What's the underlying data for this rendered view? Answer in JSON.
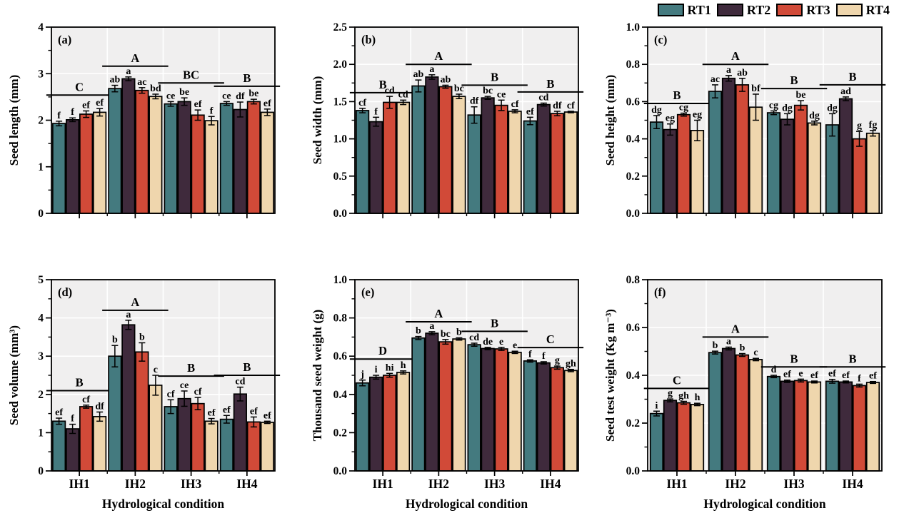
{
  "figure_title": "",
  "legend": {
    "items": [
      {
        "label": "RT1",
        "color": "#447A7F"
      },
      {
        "label": "RT2",
        "color": "#3F2A3C"
      },
      {
        "label": "RT3",
        "color": "#D14A38"
      },
      {
        "label": "RT4",
        "color": "#EFD6AD"
      }
    ]
  },
  "styles": {
    "plot_bg": "#F0EFEF",
    "grid_color": "#FFFFFF",
    "axis_color": "#000000"
  },
  "categories": [
    "IH1",
    "IH2",
    "IH3",
    "IH4"
  ],
  "series_names": [
    "RT1",
    "RT2",
    "RT3",
    "RT4"
  ],
  "xlabel": "Hydrological condition",
  "chart_data": [
    {
      "type": "bar",
      "tag": "(a)",
      "ylabel": "Seed length (mm)",
      "ylim": [
        0,
        4
      ],
      "yticks": [
        0,
        1,
        2,
        3,
        4
      ],
      "ytick_labels": [
        "0",
        "1",
        "2",
        "3",
        "4"
      ],
      "categories": [
        "IH1",
        "IH2",
        "IH3",
        "IH4"
      ],
      "show_x_labels": false,
      "xlabel": "",
      "series": [
        {
          "name": "RT1",
          "color": "#447A7F",
          "values": [
            1.93,
            2.68,
            2.35,
            2.36
          ],
          "errors": [
            0.05,
            0.07,
            0.05,
            0.04
          ],
          "letters": [
            "f",
            "ab",
            "ce",
            "ce"
          ]
        },
        {
          "name": "RT2",
          "color": "#3F2A3C",
          "values": [
            2.01,
            2.89,
            2.4,
            2.23
          ],
          "errors": [
            0.04,
            0.04,
            0.08,
            0.16
          ],
          "letters": [
            "f",
            "a",
            "be",
            "df"
          ]
        },
        {
          "name": "RT3",
          "color": "#D14A38",
          "values": [
            2.13,
            2.64,
            2.11,
            2.4
          ],
          "errors": [
            0.07,
            0.06,
            0.11,
            0.05
          ],
          "letters": [
            "ef",
            "ac",
            "ef",
            "be"
          ]
        },
        {
          "name": "RT4",
          "color": "#EFD6AD",
          "values": [
            2.17,
            2.51,
            1.99,
            2.17
          ],
          "errors": [
            0.08,
            0.05,
            0.09,
            0.07
          ],
          "letters": [
            "ef",
            "bd",
            "f",
            "ef"
          ]
        }
      ],
      "group_sig": [
        {
          "label": "C",
          "y": 2.54
        },
        {
          "label": "A",
          "y": 3.16
        },
        {
          "label": "BC",
          "y": 2.8
        },
        {
          "label": "B",
          "y": 2.73
        }
      ]
    },
    {
      "type": "bar",
      "tag": "(b)",
      "ylabel": "Seed width (mm)",
      "ylim": [
        0,
        2.5
      ],
      "yticks": [
        0,
        0.5,
        1.0,
        1.5,
        2.0,
        2.5
      ],
      "ytick_labels": [
        "0.0",
        "0.5",
        "1.0",
        "1.5",
        "2.0",
        "2.5"
      ],
      "categories": [
        "IH1",
        "IH2",
        "IH3",
        "IH4"
      ],
      "show_x_labels": false,
      "xlabel": "",
      "series": [
        {
          "name": "RT1",
          "color": "#447A7F",
          "values": [
            1.38,
            1.71,
            1.32,
            1.24
          ],
          "errors": [
            0.03,
            0.08,
            0.11,
            0.05
          ],
          "letters": [
            "cf",
            "ab",
            "df",
            "ef"
          ]
        },
        {
          "name": "RT2",
          "color": "#3F2A3C",
          "values": [
            1.23,
            1.83,
            1.55,
            1.46
          ],
          "errors": [
            0.06,
            0.03,
            0.02,
            0.02
          ],
          "letters": [
            "f",
            "a",
            "bc",
            "cd"
          ]
        },
        {
          "name": "RT3",
          "color": "#D14A38",
          "values": [
            1.49,
            1.7,
            1.45,
            1.34
          ],
          "errors": [
            0.08,
            0.02,
            0.07,
            0.03
          ],
          "letters": [
            "cd",
            "ab",
            "ce",
            "df"
          ]
        },
        {
          "name": "RT4",
          "color": "#EFD6AD",
          "values": [
            1.49,
            1.57,
            1.37,
            1.36
          ],
          "errors": [
            0.03,
            0.03,
            0.02,
            0.01
          ],
          "letters": [
            "cd",
            "bc",
            "cf",
            "cf"
          ]
        }
      ],
      "group_sig": [
        {
          "label": "B",
          "y": 1.62
        },
        {
          "label": "A",
          "y": 2.0
        },
        {
          "label": "B",
          "y": 1.72
        },
        {
          "label": "B",
          "y": 1.63
        }
      ]
    },
    {
      "type": "bar",
      "tag": "(c)",
      "ylabel": "Seed height (mm)",
      "ylim": [
        0,
        1.0
      ],
      "yticks": [
        0,
        0.2,
        0.4,
        0.6,
        0.8,
        1.0
      ],
      "ytick_labels": [
        "0.0",
        "0.2",
        "0.4",
        "0.6",
        "0.8",
        "1.0"
      ],
      "categories": [
        "IH1",
        "IH2",
        "IH3",
        "IH4"
      ],
      "show_x_labels": false,
      "xlabel": "",
      "series": [
        {
          "name": "RT1",
          "color": "#447A7F",
          "values": [
            0.49,
            0.655,
            0.54,
            0.475
          ],
          "errors": [
            0.035,
            0.035,
            0.01,
            0.06
          ],
          "letters": [
            "dg",
            "ac",
            "cg",
            "dg"
          ]
        },
        {
          "name": "RT2",
          "color": "#3F2A3C",
          "values": [
            0.45,
            0.725,
            0.505,
            0.615
          ],
          "errors": [
            0.03,
            0.015,
            0.03,
            0.01
          ],
          "letters": [
            "eg",
            "a",
            "dg",
            "ad"
          ]
        },
        {
          "name": "RT3",
          "color": "#D14A38",
          "values": [
            0.53,
            0.69,
            0.58,
            0.4
          ],
          "errors": [
            0.008,
            0.035,
            0.025,
            0.04
          ],
          "letters": [
            "cg",
            "ab",
            "be",
            "g"
          ]
        },
        {
          "name": "RT4",
          "color": "#EFD6AD",
          "values": [
            0.445,
            0.57,
            0.485,
            0.43
          ],
          "errors": [
            0.055,
            0.07,
            0.01,
            0.015
          ],
          "letters": [
            "eg",
            "bf",
            "dg",
            "fg"
          ]
        }
      ],
      "group_sig": [
        {
          "label": "B",
          "y": 0.59
        },
        {
          "label": "A",
          "y": 0.8
        },
        {
          "label": "B",
          "y": 0.67
        },
        {
          "label": "B",
          "y": 0.69
        }
      ]
    },
    {
      "type": "bar",
      "tag": "(d)",
      "ylabel": "Seed volume (mm³)",
      "ylim": [
        0,
        5
      ],
      "yticks": [
        0,
        1,
        2,
        3,
        4,
        5
      ],
      "ytick_labels": [
        "0",
        "1",
        "2",
        "3",
        "4",
        "5"
      ],
      "categories": [
        "IH1",
        "IH2",
        "IH3",
        "IH4"
      ],
      "show_x_labels": true,
      "xlabel": "Hydrological condition",
      "series": [
        {
          "name": "RT1",
          "color": "#447A7F",
          "values": [
            1.3,
            3.0,
            1.68,
            1.35
          ],
          "errors": [
            0.08,
            0.28,
            0.18,
            0.1
          ],
          "letters": [
            "ef",
            "b",
            "cf",
            "ef"
          ]
        },
        {
          "name": "RT2",
          "color": "#3F2A3C",
          "values": [
            1.1,
            3.82,
            1.89,
            2.01
          ],
          "errors": [
            0.12,
            0.12,
            0.2,
            0.18
          ],
          "letters": [
            "f",
            "a",
            "ce",
            "cd"
          ]
        },
        {
          "name": "RT3",
          "color": "#D14A38",
          "values": [
            1.68,
            3.11,
            1.76,
            1.28
          ],
          "errors": [
            0.04,
            0.24,
            0.16,
            0.13
          ],
          "letters": [
            "cf",
            "b",
            "cf",
            "ef"
          ]
        },
        {
          "name": "RT4",
          "color": "#EFD6AD",
          "values": [
            1.42,
            2.24,
            1.3,
            1.27
          ],
          "errors": [
            0.12,
            0.26,
            0.07,
            0.03
          ],
          "letters": [
            "df",
            "c",
            "ef",
            "ef"
          ]
        }
      ],
      "group_sig": [
        {
          "label": "B",
          "y": 2.1
        },
        {
          "label": "A",
          "y": 4.2
        },
        {
          "label": "B",
          "y": 2.48
        },
        {
          "label": "B",
          "y": 2.5
        }
      ]
    },
    {
      "type": "bar",
      "tag": "(e)",
      "ylabel": "Thousand seed weight (g)",
      "ylim": [
        0,
        1.0
      ],
      "yticks": [
        0,
        0.2,
        0.4,
        0.6,
        0.8,
        1.0
      ],
      "ytick_labels": [
        "0.0",
        "0.2",
        "0.4",
        "0.6",
        "0.8",
        "1.0"
      ],
      "categories": [
        "IH1",
        "IH2",
        "IH3",
        "IH4"
      ],
      "show_x_labels": true,
      "xlabel": "Hydrological condition",
      "series": [
        {
          "name": "RT1",
          "color": "#447A7F",
          "values": [
            0.46,
            0.695,
            0.66,
            0.575
          ],
          "errors": [
            0.015,
            0.008,
            0.008,
            0.006
          ],
          "letters": [
            "j",
            "b",
            "cd",
            "f"
          ]
        },
        {
          "name": "RT2",
          "color": "#3F2A3C",
          "values": [
            0.49,
            0.72,
            0.64,
            0.565
          ],
          "errors": [
            0.01,
            0.008,
            0.006,
            0.006
          ],
          "letters": [
            "i",
            "a",
            "de",
            "f"
          ]
        },
        {
          "name": "RT3",
          "color": "#D14A38",
          "values": [
            0.5,
            0.675,
            0.638,
            0.54
          ],
          "errors": [
            0.01,
            0.012,
            0.008,
            0.008
          ],
          "letters": [
            "hi",
            "bc",
            "e",
            "g"
          ]
        },
        {
          "name": "RT4",
          "color": "#EFD6AD",
          "values": [
            0.515,
            0.69,
            0.62,
            0.525
          ],
          "errors": [
            0.008,
            0.006,
            0.006,
            0.006
          ],
          "letters": [
            "h",
            "b",
            "e",
            "gh"
          ]
        }
      ],
      "group_sig": [
        {
          "label": "D",
          "y": 0.585
        },
        {
          "label": "A",
          "y": 0.78
        },
        {
          "label": "B",
          "y": 0.73
        },
        {
          "label": "C",
          "y": 0.645
        }
      ]
    },
    {
      "type": "bar",
      "tag": "(f)",
      "ylabel": "Seed test weight (Kg m⁻³)",
      "ylim": [
        0,
        0.8
      ],
      "yticks": [
        0,
        0.2,
        0.4,
        0.6,
        0.8
      ],
      "ytick_labels": [
        "0.0",
        "0.2",
        "0.4",
        "0.6",
        "0.8"
      ],
      "categories": [
        "IH1",
        "IH2",
        "IH3",
        "IH4"
      ],
      "show_x_labels": true,
      "xlabel": "Hydrological condition",
      "series": [
        {
          "name": "RT1",
          "color": "#447A7F",
          "values": [
            0.24,
            0.495,
            0.395,
            0.375
          ],
          "errors": [
            0.01,
            0.006,
            0.005,
            0.008
          ],
          "letters": [
            "i",
            "b",
            "d",
            "ef"
          ]
        },
        {
          "name": "RT2",
          "color": "#3F2A3C",
          "values": [
            0.295,
            0.512,
            0.375,
            0.372
          ],
          "errors": [
            0.006,
            0.006,
            0.005,
            0.004
          ],
          "letters": [
            "g",
            "a",
            "ef",
            "ef"
          ]
        },
        {
          "name": "RT3",
          "color": "#D14A38",
          "values": [
            0.285,
            0.485,
            0.378,
            0.357
          ],
          "errors": [
            0.006,
            0.006,
            0.006,
            0.006
          ],
          "letters": [
            "gh",
            "b",
            "e",
            "f"
          ]
        },
        {
          "name": "RT4",
          "color": "#EFD6AD",
          "values": [
            0.278,
            0.466,
            0.372,
            0.37
          ],
          "errors": [
            0.005,
            0.005,
            0.004,
            0.004
          ],
          "letters": [
            "h",
            "c",
            "ef",
            "ef"
          ]
        }
      ],
      "group_sig": [
        {
          "label": "C",
          "y": 0.345
        },
        {
          "label": "A",
          "y": 0.56
        },
        {
          "label": "B",
          "y": 0.435
        },
        {
          "label": "B",
          "y": 0.435
        }
      ]
    }
  ]
}
